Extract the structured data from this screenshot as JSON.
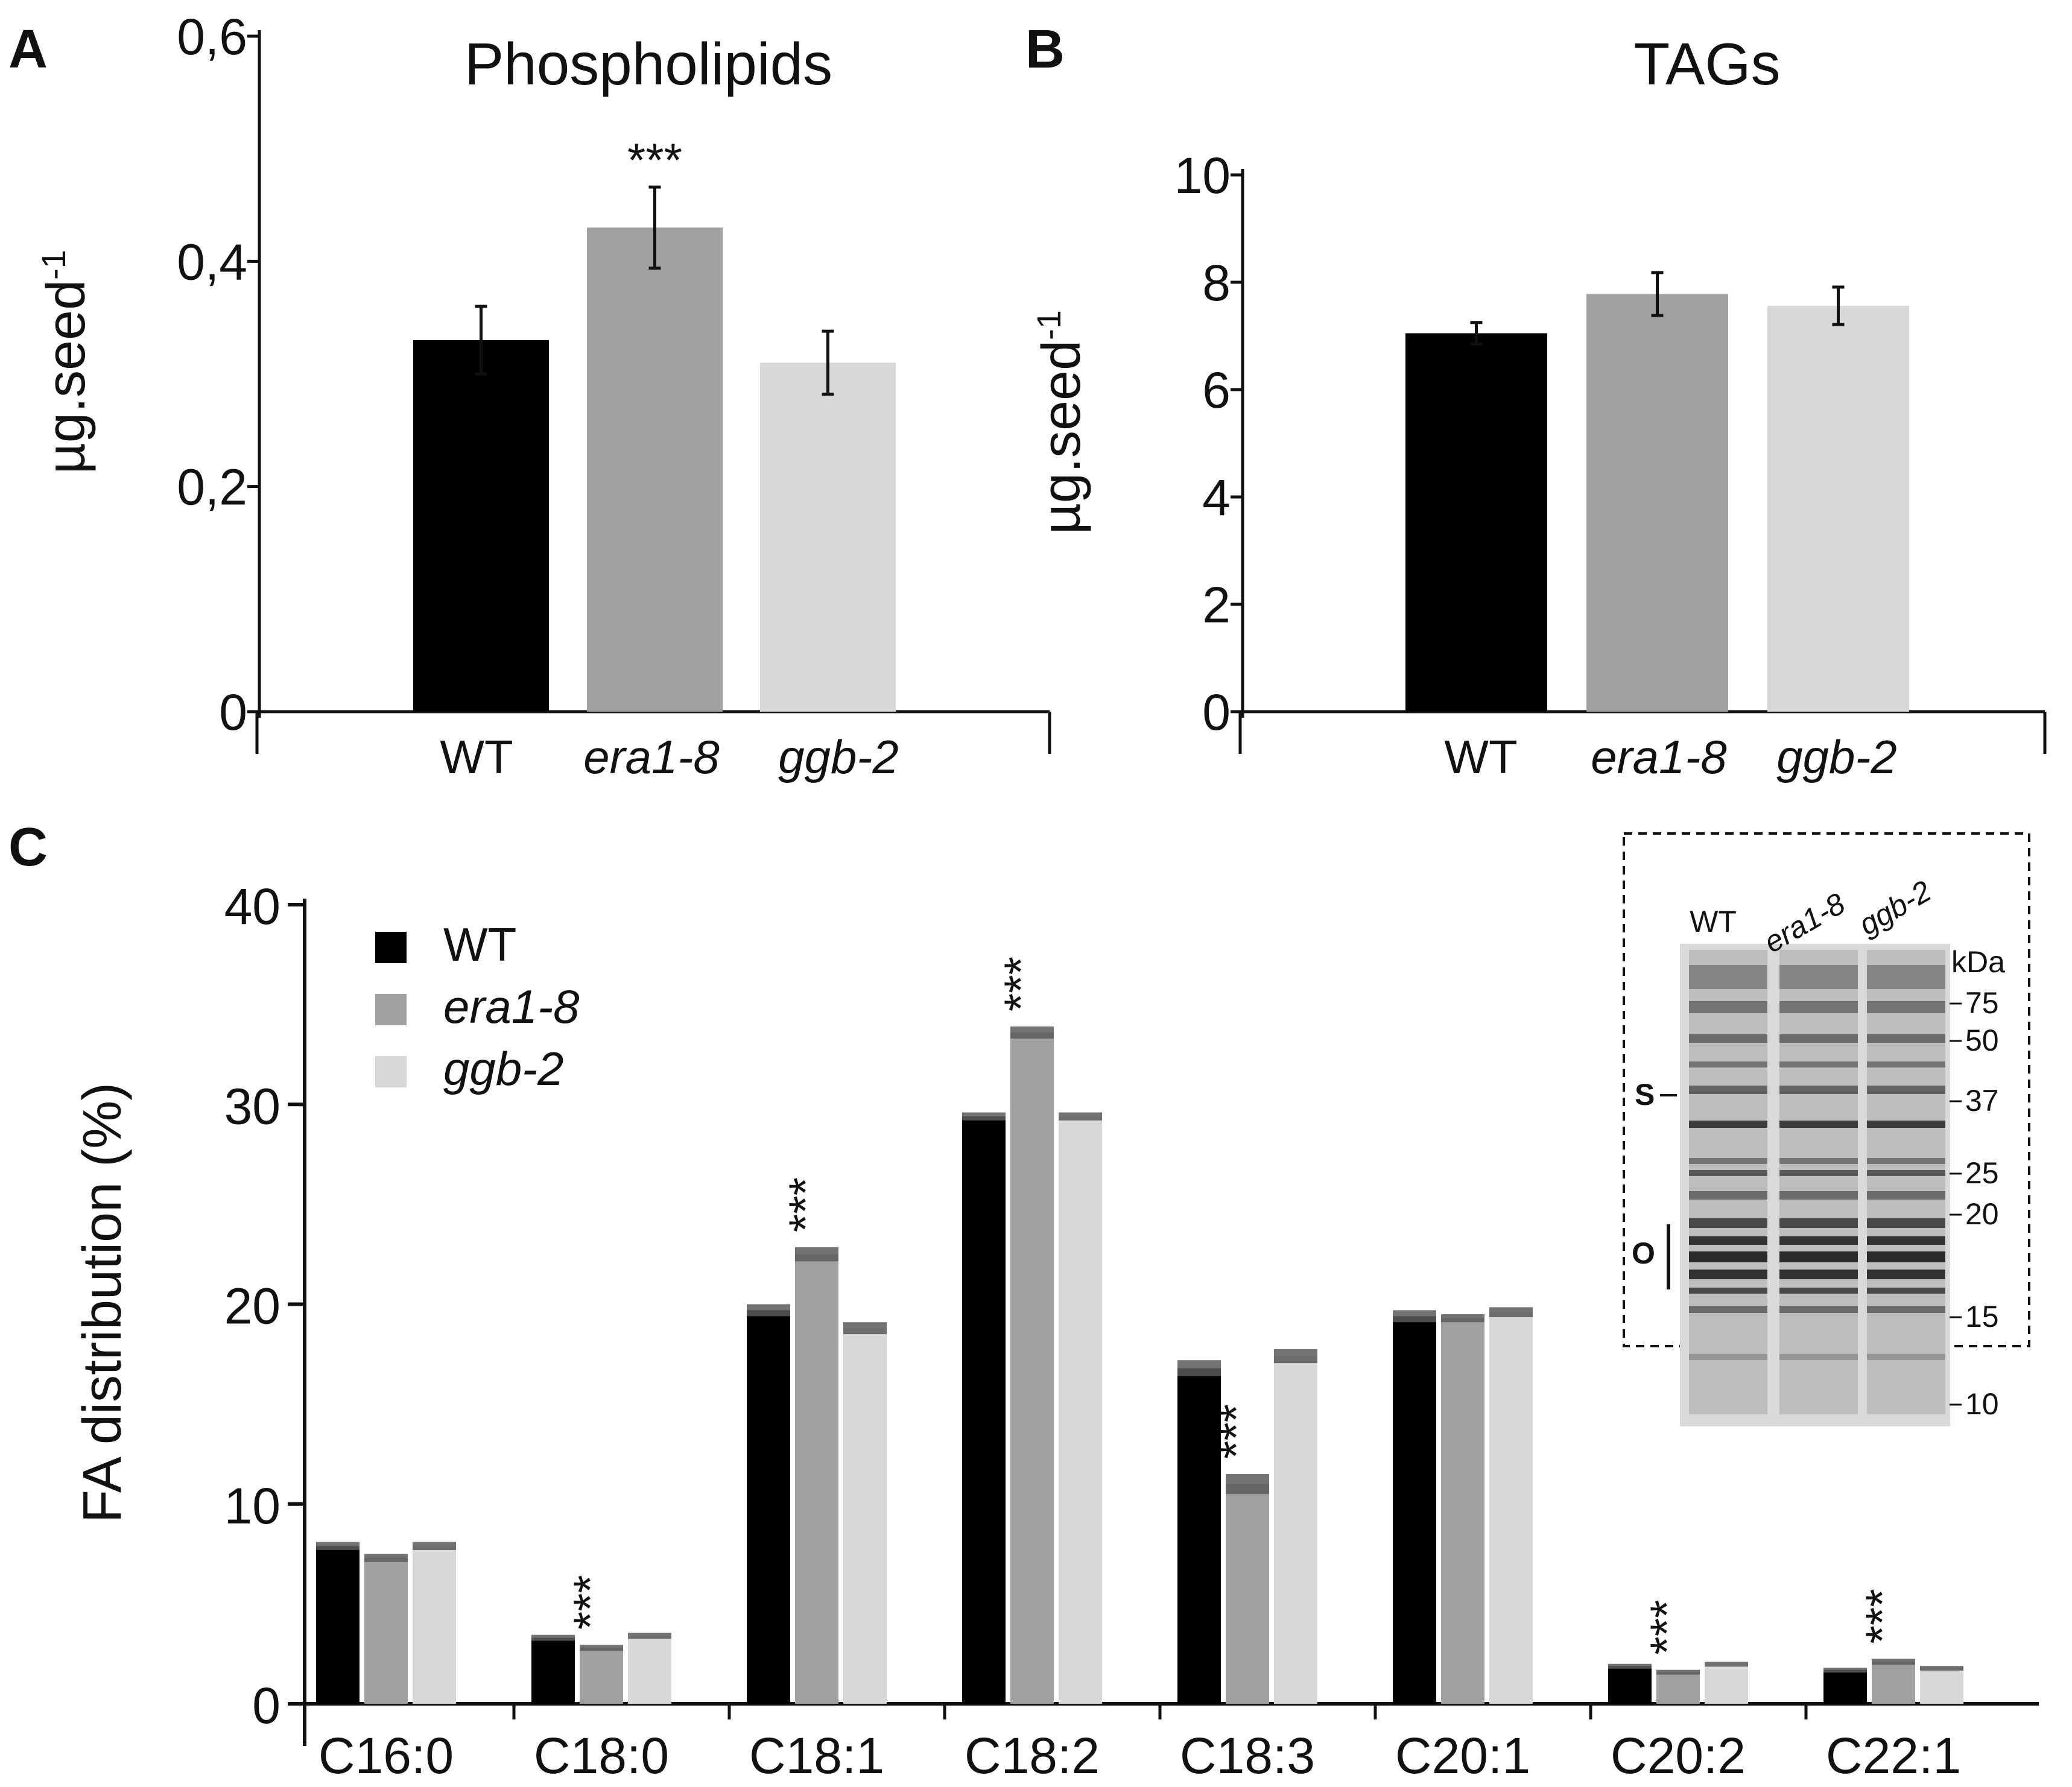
{
  "panels": {
    "A": {
      "letter": "A"
    },
    "B": {
      "letter": "B"
    },
    "C": {
      "letter": "C"
    }
  },
  "chart_data": [
    {
      "id": "A",
      "type": "bar",
      "title": "Phospholipids",
      "ylabel": "µg.seed",
      "ylabel_sup": "-1",
      "ylim": [
        0,
        0.6
      ],
      "yticks": [
        0,
        0.2,
        0.4,
        0.6
      ],
      "ytick_labels": [
        "0",
        "0,2",
        "0,4",
        "0,6"
      ],
      "categories": [
        "WT",
        "era1-8",
        "ggb-2"
      ],
      "categories_italic": [
        false,
        true,
        true
      ],
      "values": [
        0.33,
        0.43,
        0.31
      ],
      "errors": [
        0.03,
        0.036,
        0.028
      ],
      "colors": [
        "#000000",
        "#a0a0a0",
        "#d8d8d8"
      ],
      "significance": [
        "",
        "***",
        ""
      ]
    },
    {
      "id": "B",
      "type": "bar",
      "title": "TAGs",
      "ylabel": "µg.seed",
      "ylabel_sup": "-1",
      "ylim": [
        0,
        10
      ],
      "yticks": [
        0,
        2,
        4,
        6,
        8,
        10
      ],
      "ytick_labels": [
        "0",
        "2",
        "4",
        "6",
        "8",
        "10"
      ],
      "categories": [
        "WT",
        "era1-8",
        "ggb-2"
      ],
      "categories_italic": [
        false,
        true,
        true
      ],
      "values": [
        7.05,
        7.78,
        7.56
      ],
      "errors": [
        0.2,
        0.4,
        0.35
      ],
      "colors": [
        "#000000",
        "#a0a0a0",
        "#d8d8d8"
      ],
      "significance": [
        "",
        "",
        ""
      ]
    },
    {
      "id": "C",
      "type": "bar",
      "ylabel": "FA distribution (%)",
      "ylim": [
        0,
        40
      ],
      "yticks": [
        0,
        10,
        20,
        30,
        40
      ],
      "ytick_labels": [
        "0",
        "10",
        "20",
        "30",
        "40"
      ],
      "categories": [
        "C16:0",
        "C18:0",
        "C18:1",
        "C18:2",
        "C18:3",
        "C20:1",
        "C20:2",
        "C22:1"
      ],
      "series": [
        {
          "name": "WT",
          "italic": false,
          "color": "#000000",
          "values": [
            7.9,
            3.3,
            19.7,
            29.4,
            16.8,
            19.4,
            1.9,
            1.7
          ],
          "errors": [
            0.2,
            0.15,
            0.3,
            0.2,
            0.4,
            0.3,
            0.1,
            0.1
          ]
        },
        {
          "name": "era1-8",
          "italic": true,
          "color": "#a0a0a0",
          "values": [
            7.3,
            2.8,
            22.5,
            33.6,
            11.0,
            19.3,
            1.6,
            2.1
          ],
          "errors": [
            0.2,
            0.15,
            0.35,
            0.3,
            0.5,
            0.2,
            0.1,
            0.15
          ]
        },
        {
          "name": "ggb-2",
          "italic": true,
          "color": "#d8d8d8",
          "values": [
            7.9,
            3.4,
            18.8,
            29.4,
            17.4,
            19.6,
            2.0,
            1.8
          ],
          "errors": [
            0.2,
            0.15,
            0.3,
            0.2,
            0.35,
            0.25,
            0.1,
            0.1
          ]
        }
      ],
      "significance": [
        "",
        "***",
        "***",
        "***",
        "***",
        "",
        "***",
        "***"
      ]
    }
  ],
  "gel": {
    "lanes": [
      "WT",
      "era1-8",
      "ggb-2"
    ],
    "lanes_italic": [
      false,
      true,
      true
    ],
    "unit": "kDa",
    "markers": [
      "75",
      "50",
      "37",
      "25",
      "20",
      "15",
      "10"
    ],
    "band_labels": [
      "S",
      "O"
    ]
  }
}
